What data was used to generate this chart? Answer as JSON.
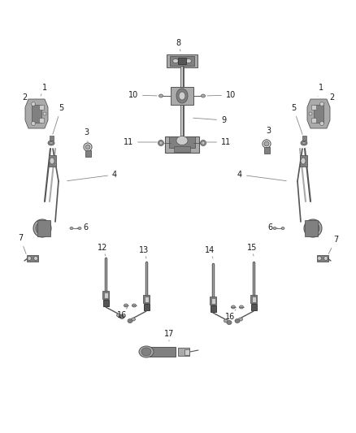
{
  "bg_color": "#ffffff",
  "figure_width": 4.38,
  "figure_height": 5.33,
  "dpi": 100,
  "label_fontsize": 7,
  "label_color": "#1a1a1a",
  "line_color": "#888888",
  "gray1": "#2a2a2a",
  "gray2": "#555555",
  "gray3": "#808080",
  "gray4": "#aaaaaa",
  "gray5": "#cccccc"
}
